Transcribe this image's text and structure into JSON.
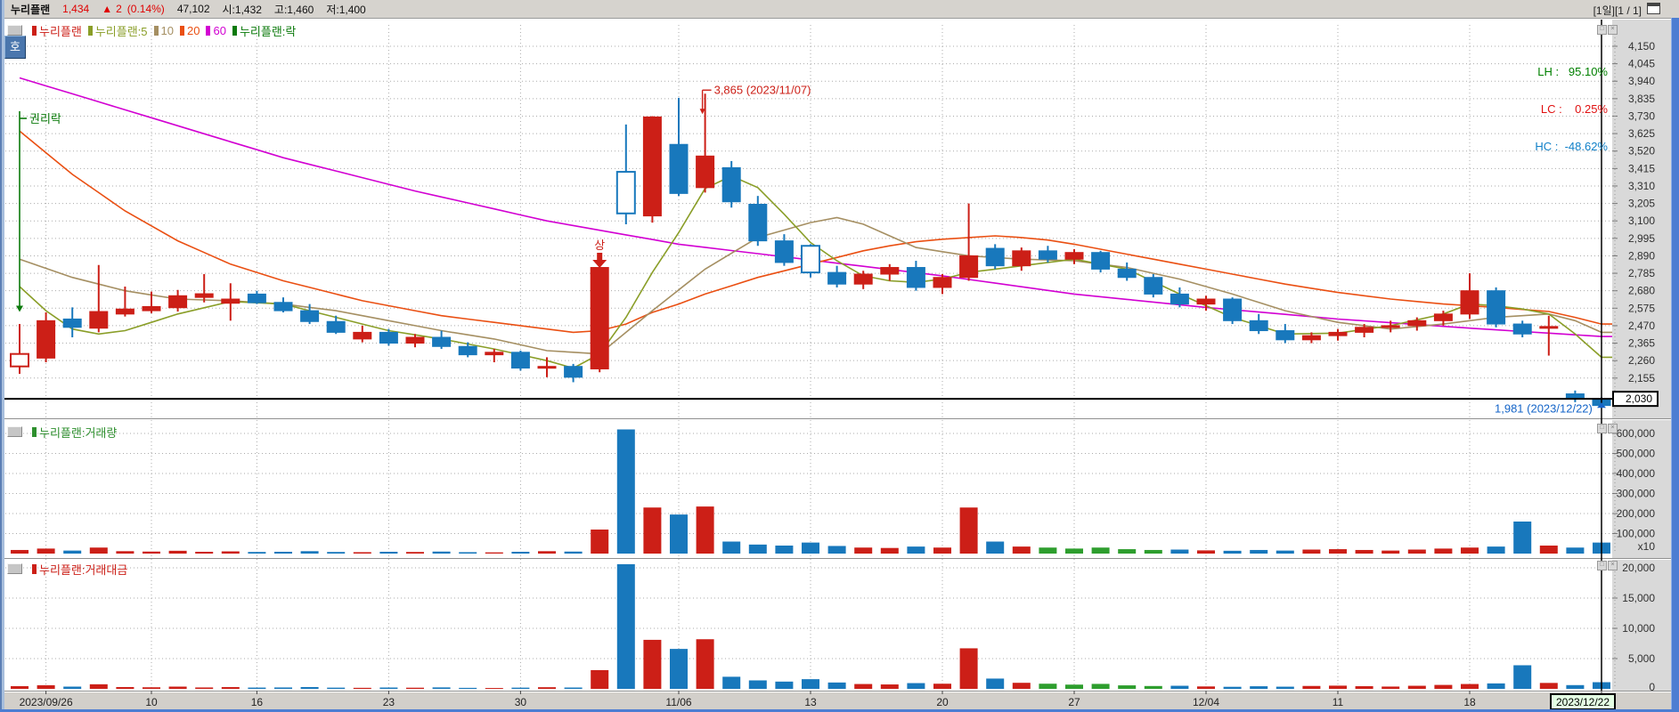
{
  "topbar": {
    "name": "누리플랜",
    "price": "1,434",
    "change_arrow": "▲",
    "change": "2",
    "change_pct": "(0.14%)",
    "volume": "47,102",
    "open": "시:1,432",
    "high": "고:1,460",
    "low": "저:1,400",
    "right_info": "[1일][1 / 1]"
  },
  "side_button": "호",
  "panes": [
    {
      "legend": [
        {
          "label": "누리플랜",
          "color": "#cc1f17"
        },
        {
          "label": "누리플랜:5",
          "color": "#8a9e28"
        },
        {
          "label": "10",
          "color": "#a58f62"
        },
        {
          "label": "20",
          "color": "#ea4f12"
        },
        {
          "label": "60",
          "color": "#d200d2"
        },
        {
          "label": "누리플랜:락",
          "color": "#0b7a0b"
        }
      ]
    },
    {
      "legend": [
        {
          "label": "누리플랜:거래량",
          "color": "#2e8f2e"
        }
      ]
    },
    {
      "legend": [
        {
          "label": "누리플랜:거래대금",
          "color": "#cc1f17"
        }
      ]
    }
  ],
  "overlay_stats": {
    "lh": "LH :   95.10%",
    "lc": "LC :    0.25%",
    "hc": "HC :  -48.62%",
    "lh_color": "#008000",
    "lc_color": "#e01010",
    "hc_color": "#1080c8"
  },
  "annotations": {
    "high_label": "3,865 (2023/11/07)",
    "low_label": "1,981 (2023/12/22)",
    "rights_label": "권리락",
    "spike_marker": "상",
    "crosshair_price": "2,030",
    "current_date": "2023/12/22"
  },
  "chart_data": {
    "type": "candlestick+volume+value",
    "title": "누리플랜 일봉",
    "price_axis": {
      "min": 2155,
      "max": 4150,
      "step": 105
    },
    "volume_axis": {
      "min": 0,
      "max": 600000,
      "step": 100000,
      "unit": "x10"
    },
    "value_axis": {
      "min": 0,
      "max": 20000,
      "step": 5000
    },
    "x_ticks": {
      "indices": [
        1,
        5,
        9,
        14,
        19,
        25,
        30,
        35,
        40,
        45,
        50,
        55,
        60
      ],
      "labels": [
        "2023/09/26",
        "10",
        "16",
        "23",
        "30",
        "11/06",
        "13",
        "20",
        "27",
        "12/04",
        "11",
        "18",
        "2023/12/22"
      ]
    },
    "crosshair": {
      "index": 60,
      "price": 2030
    },
    "candles_format": [
      "open",
      "high",
      "low",
      "close",
      "volume",
      "value",
      "hollow"
    ],
    "candles": [
      [
        2225,
        2480,
        2180,
        2300,
        18000,
        450,
        1
      ],
      [
        2275,
        2550,
        2250,
        2500,
        25000,
        600,
        0
      ],
      [
        2510,
        2580,
        2400,
        2460,
        15000,
        370,
        0
      ],
      [
        2455,
        2835,
        2430,
        2555,
        30000,
        760,
        0
      ],
      [
        2540,
        2705,
        2525,
        2570,
        12000,
        300,
        0
      ],
      [
        2560,
        2675,
        2545,
        2585,
        10000,
        260,
        0
      ],
      [
        2578,
        2685,
        2555,
        2650,
        14000,
        370,
        0
      ],
      [
        2640,
        2780,
        2610,
        2662,
        9000,
        230,
        0
      ],
      [
        2605,
        2725,
        2500,
        2630,
        11000,
        290,
        0
      ],
      [
        2660,
        2680,
        2600,
        2608,
        8000,
        210,
        0
      ],
      [
        2610,
        2640,
        2550,
        2560,
        9000,
        230,
        0
      ],
      [
        2560,
        2600,
        2480,
        2495,
        12000,
        300,
        0
      ],
      [
        2495,
        2530,
        2420,
        2430,
        8000,
        200,
        0
      ],
      [
        2390,
        2470,
        2370,
        2430,
        7000,
        170,
        0
      ],
      [
        2430,
        2450,
        2350,
        2365,
        9000,
        220,
        0
      ],
      [
        2365,
        2420,
        2340,
        2400,
        8000,
        190,
        0
      ],
      [
        2400,
        2440,
        2330,
        2345,
        10000,
        240,
        0
      ],
      [
        2345,
        2370,
        2280,
        2295,
        7000,
        165,
        0
      ],
      [
        2295,
        2330,
        2250,
        2310,
        6000,
        140,
        0
      ],
      [
        2310,
        2320,
        2200,
        2215,
        9000,
        200,
        0
      ],
      [
        2215,
        2280,
        2160,
        2225,
        12000,
        270,
        0
      ],
      [
        2225,
        2240,
        2130,
        2160,
        10000,
        220,
        0
      ],
      [
        2210,
        2860,
        2190,
        2820,
        120000,
        3100,
        0
      ],
      [
        3395,
        3680,
        3080,
        3145,
        620000,
        20600,
        1
      ],
      [
        3130,
        3730,
        3090,
        3725,
        230000,
        8100,
        0
      ],
      [
        3560,
        3840,
        3250,
        3265,
        195000,
        6600,
        0
      ],
      [
        3300,
        3865,
        3270,
        3490,
        235000,
        8200,
        0
      ],
      [
        3420,
        3460,
        3180,
        3215,
        60000,
        2000,
        0
      ],
      [
        3200,
        3250,
        2950,
        2980,
        45000,
        1400,
        0
      ],
      [
        2980,
        3020,
        2830,
        2850,
        40000,
        1200,
        0
      ],
      [
        2950,
        2960,
        2760,
        2790,
        55000,
        1600,
        1
      ],
      [
        2790,
        2830,
        2700,
        2720,
        38000,
        1050,
        0
      ],
      [
        2720,
        2800,
        2690,
        2780,
        30000,
        800,
        0
      ],
      [
        2780,
        2840,
        2740,
        2820,
        28000,
        730,
        0
      ],
      [
        2820,
        2860,
        2680,
        2700,
        35000,
        950,
        0
      ],
      [
        2700,
        2780,
        2660,
        2760,
        30000,
        850,
        0
      ],
      [
        2760,
        3205,
        2740,
        2890,
        230000,
        6700,
        0
      ],
      [
        2935,
        2960,
        2810,
        2830,
        60000,
        1700,
        0
      ],
      [
        2830,
        2940,
        2800,
        2920,
        35000,
        1000,
        0
      ],
      [
        2920,
        2950,
        2850,
        2870,
        30000,
        850,
        0
      ],
      [
        2870,
        2930,
        2840,
        2910,
        25000,
        700,
        0
      ],
      [
        2910,
        2920,
        2790,
        2810,
        30000,
        820,
        0
      ],
      [
        2810,
        2850,
        2740,
        2760,
        22000,
        580,
        0
      ],
      [
        2760,
        2780,
        2640,
        2660,
        18000,
        470,
        0
      ],
      [
        2660,
        2700,
        2580,
        2600,
        20000,
        510,
        0
      ],
      [
        2600,
        2650,
        2560,
        2630,
        16000,
        400,
        0
      ],
      [
        2630,
        2640,
        2480,
        2500,
        14000,
        340,
        0
      ],
      [
        2500,
        2540,
        2420,
        2440,
        18000,
        430,
        0
      ],
      [
        2440,
        2480,
        2365,
        2385,
        15000,
        360,
        0
      ],
      [
        2385,
        2430,
        2365,
        2410,
        20000,
        480,
        0
      ],
      [
        2410,
        2450,
        2380,
        2430,
        22000,
        530,
        0
      ],
      [
        2430,
        2480,
        2400,
        2460,
        18000,
        440,
        0
      ],
      [
        2460,
        2500,
        2430,
        2470,
        15000,
        380,
        0
      ],
      [
        2470,
        2520,
        2440,
        2500,
        20000,
        510,
        0
      ],
      [
        2500,
        2560,
        2470,
        2540,
        25000,
        650,
        0
      ],
      [
        2540,
        2785,
        2510,
        2680,
        30000,
        800,
        0
      ],
      [
        2680,
        2700,
        2460,
        2480,
        35000,
        900,
        0
      ],
      [
        2480,
        2500,
        2400,
        2420,
        160000,
        3900,
        0
      ],
      [
        2460,
        2530,
        2290,
        2465,
        40000,
        980,
        0
      ],
      [
        2060,
        2080,
        2010,
        2030,
        30000,
        620,
        0
      ],
      [
        2030,
        2040,
        1981,
        1990,
        55000,
        1100,
        0
      ]
    ],
    "green_bar_indices": [
      39,
      40,
      41,
      42,
      43
    ],
    "moving_averages": {
      "ma5": [
        [
          0,
          2705
        ],
        [
          1,
          2560
        ],
        [
          2,
          2450
        ],
        [
          3,
          2420
        ],
        [
          4,
          2440
        ],
        [
          5,
          2490
        ],
        [
          6,
          2540
        ],
        [
          8,
          2615
        ],
        [
          10,
          2600
        ],
        [
          12,
          2520
        ],
        [
          14,
          2440
        ],
        [
          16,
          2390
        ],
        [
          18,
          2330
        ],
        [
          20,
          2260
        ],
        [
          21,
          2215
        ],
        [
          22,
          2300
        ],
        [
          23,
          2520
        ],
        [
          24,
          2790
        ],
        [
          25,
          3030
        ],
        [
          26,
          3295
        ],
        [
          27,
          3370
        ],
        [
          28,
          3300
        ],
        [
          29,
          3140
        ],
        [
          30,
          2970
        ],
        [
          31,
          2860
        ],
        [
          32,
          2770
        ],
        [
          33,
          2740
        ],
        [
          34,
          2730
        ],
        [
          35,
          2750
        ],
        [
          36,
          2790
        ],
        [
          38,
          2830
        ],
        [
          40,
          2870
        ],
        [
          42,
          2810
        ],
        [
          44,
          2660
        ],
        [
          46,
          2520
        ],
        [
          48,
          2420
        ],
        [
          50,
          2425
        ],
        [
          52,
          2470
        ],
        [
          54,
          2540
        ],
        [
          55,
          2600
        ],
        [
          56,
          2590
        ],
        [
          57,
          2570
        ],
        [
          58,
          2540
        ],
        [
          59,
          2420
        ],
        [
          60,
          2280
        ]
      ],
      "ma10": [
        [
          0,
          2870
        ],
        [
          2,
          2760
        ],
        [
          4,
          2680
        ],
        [
          6,
          2630
        ],
        [
          8,
          2620
        ],
        [
          10,
          2600
        ],
        [
          12,
          2560
        ],
        [
          14,
          2500
        ],
        [
          16,
          2440
        ],
        [
          18,
          2390
        ],
        [
          20,
          2320
        ],
        [
          22,
          2300
        ],
        [
          24,
          2560
        ],
        [
          26,
          2810
        ],
        [
          28,
          3000
        ],
        [
          30,
          3090
        ],
        [
          31,
          3120
        ],
        [
          32,
          3080
        ],
        [
          33,
          3010
        ],
        [
          34,
          2940
        ],
        [
          36,
          2890
        ],
        [
          38,
          2870
        ],
        [
          40,
          2860
        ],
        [
          42,
          2820
        ],
        [
          44,
          2750
        ],
        [
          46,
          2660
        ],
        [
          48,
          2560
        ],
        [
          50,
          2490
        ],
        [
          52,
          2450
        ],
        [
          54,
          2480
        ],
        [
          56,
          2520
        ],
        [
          58,
          2540
        ],
        [
          59,
          2500
        ],
        [
          60,
          2430
        ]
      ],
      "ma20": [
        [
          0,
          3640
        ],
        [
          2,
          3380
        ],
        [
          4,
          3160
        ],
        [
          6,
          2980
        ],
        [
          8,
          2840
        ],
        [
          10,
          2740
        ],
        [
          13,
          2620
        ],
        [
          16,
          2530
        ],
        [
          19,
          2470
        ],
        [
          21,
          2430
        ],
        [
          22,
          2440
        ],
        [
          23,
          2480
        ],
        [
          24,
          2550
        ],
        [
          25,
          2600
        ],
        [
          26,
          2660
        ],
        [
          27,
          2710
        ],
        [
          28,
          2760
        ],
        [
          29,
          2800
        ],
        [
          30,
          2840
        ],
        [
          31,
          2880
        ],
        [
          32,
          2920
        ],
        [
          33,
          2950
        ],
        [
          34,
          2975
        ],
        [
          35,
          2990
        ],
        [
          36,
          3000
        ],
        [
          37,
          3010
        ],
        [
          38,
          3000
        ],
        [
          39,
          2985
        ],
        [
          40,
          2960
        ],
        [
          42,
          2900
        ],
        [
          44,
          2840
        ],
        [
          46,
          2780
        ],
        [
          48,
          2720
        ],
        [
          50,
          2670
        ],
        [
          52,
          2630
        ],
        [
          54,
          2600
        ],
        [
          56,
          2580
        ],
        [
          58,
          2555
        ],
        [
          59,
          2520
        ],
        [
          60,
          2480
        ]
      ],
      "ma60": [
        [
          0,
          3960
        ],
        [
          5,
          3720
        ],
        [
          10,
          3480
        ],
        [
          15,
          3280
        ],
        [
          20,
          3100
        ],
        [
          25,
          2960
        ],
        [
          30,
          2865
        ],
        [
          35,
          2770
        ],
        [
          40,
          2660
        ],
        [
          45,
          2580
        ],
        [
          50,
          2510
        ],
        [
          55,
          2455
        ],
        [
          60,
          2405
        ]
      ]
    },
    "events": {
      "rights_index": 0,
      "rights_top": 3760,
      "rights_bottom": 2590,
      "spike_index": 22,
      "high_index": 26,
      "low_index": 60
    }
  },
  "colors": {
    "up": "#cc1f17",
    "down": "#1878bc",
    "flat_bar": "#2e9e2e",
    "ma5": "#8a9e28",
    "ma10": "#a58f62",
    "ma20": "#ea4f12",
    "ma60": "#d200d2",
    "event_green": "#0b7a0b",
    "grid": "#ababab",
    "axis_bg": "#d9d9d9",
    "annotation_red": "#cc1f17",
    "annotation_blue": "#1565c8"
  }
}
